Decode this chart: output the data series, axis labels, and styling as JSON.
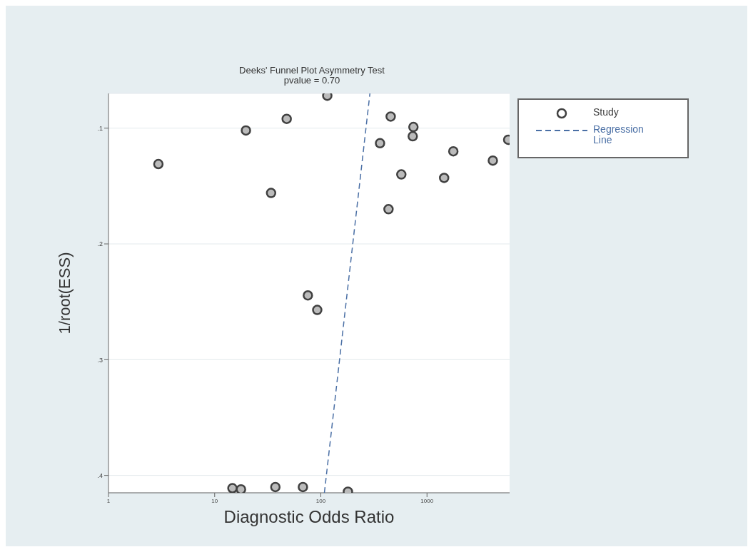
{
  "chart_data": {
    "type": "scatter",
    "title": "Deeks' Funnel Plot Asymmetry Test",
    "subtitle": "pvalue =  0.70",
    "xlabel": "Diagnostic Odds Ratio",
    "ylabel": "1/root(ESS)",
    "log": "x",
    "xlim": [
      1,
      6000
    ],
    "xticks": [
      1,
      10,
      100,
      1000
    ],
    "ylim": [
      0.415,
      0.07
    ],
    "yticks": [
      {
        "value": 0.1,
        "label": ".1"
      },
      {
        "value": 0.2,
        "label": ".2"
      },
      {
        "value": 0.3,
        "label": ".3"
      },
      {
        "value": 0.4,
        "label": ".4"
      }
    ],
    "grid": "y",
    "legend": "right",
    "series": [
      {
        "name": "Study",
        "type": "scatter",
        "marker": "circle",
        "color": "#404040",
        "x": [
          2.95,
          19.7,
          47.7,
          115,
          34,
          361,
          455,
          745,
          734,
          573,
          434,
          1770,
          1450,
          4170,
          5820,
          75.5,
          92.5,
          14.7,
          17.7,
          37.3,
          67.8,
          180
        ],
        "values": [
          0.131,
          0.102,
          0.092,
          0.072,
          0.156,
          0.113,
          0.09,
          0.099,
          0.107,
          0.14,
          0.17,
          0.12,
          0.143,
          0.128,
          0.11,
          0.2445,
          0.257,
          0.411,
          0.412,
          0.41,
          0.41,
          0.414
        ]
      },
      {
        "name": "Regression Line",
        "type": "line",
        "marker": "none",
        "color": "#4a6fa5",
        "line_style": "dashed",
        "x": [
          108,
          290
        ],
        "values": [
          0.415,
          0.07
        ]
      }
    ]
  }
}
